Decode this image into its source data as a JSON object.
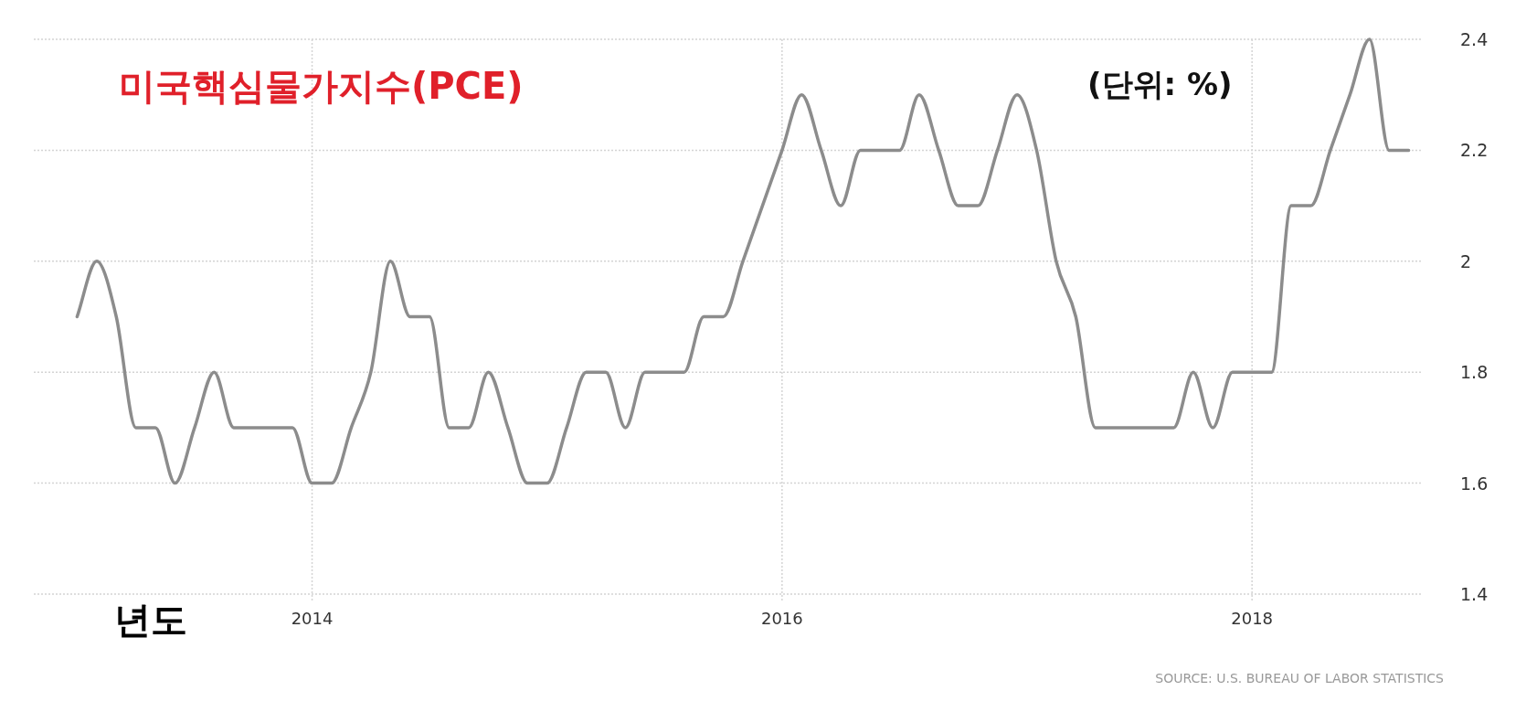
{
  "chart_data": {
    "type": "line",
    "title": "미국핵심물가지수(PCE)",
    "ylabel": "(단위: %)",
    "xlabel": "년도",
    "annotations": [
      "SOURCE: U.S. BUREAU OF LABOR STATISTICS"
    ],
    "x": [
      "2013-01",
      "2013-02",
      "2013-03",
      "2013-04",
      "2013-05",
      "2013-06",
      "2013-07",
      "2013-08",
      "2013-09",
      "2013-10",
      "2013-11",
      "2013-12",
      "2014-01",
      "2014-02",
      "2014-03",
      "2014-04",
      "2014-05",
      "2014-06",
      "2014-07",
      "2014-08",
      "2014-09",
      "2014-10",
      "2014-11",
      "2014-12",
      "2015-01",
      "2015-02",
      "2015-03",
      "2015-04",
      "2015-05",
      "2015-06",
      "2015-07",
      "2015-08",
      "2015-09",
      "2015-10",
      "2015-11",
      "2015-12",
      "2016-01",
      "2016-02",
      "2016-03",
      "2016-04",
      "2016-05",
      "2016-06",
      "2016-07",
      "2016-08",
      "2016-09",
      "2016-10",
      "2016-11",
      "2016-12",
      "2017-01",
      "2017-02",
      "2017-03",
      "2017-04",
      "2017-05",
      "2017-06",
      "2017-07",
      "2017-08",
      "2017-09",
      "2017-10",
      "2017-11",
      "2017-12",
      "2018-01",
      "2018-02",
      "2018-03",
      "2018-04",
      "2018-05",
      "2018-06",
      "2018-07",
      "2018-08",
      "2018-09"
    ],
    "series": [
      {
        "color": "#8c8c8c",
        "values": [
          1.9,
          2.0,
          1.9,
          1.7,
          1.7,
          1.6,
          1.7,
          1.8,
          1.7,
          1.7,
          1.7,
          1.7,
          1.6,
          1.6,
          1.7,
          1.8,
          2.0,
          1.9,
          1.9,
          1.7,
          1.7,
          1.8,
          1.7,
          1.6,
          1.6,
          1.7,
          1.8,
          1.8,
          1.7,
          1.8,
          1.8,
          1.8,
          1.9,
          1.9,
          2.0,
          2.1,
          2.2,
          2.3,
          2.2,
          2.1,
          2.2,
          2.2,
          2.2,
          2.3,
          2.2,
          2.1,
          2.1,
          2.2,
          2.3,
          2.2,
          2.0,
          1.9,
          1.7,
          1.7,
          1.7,
          1.7,
          1.7,
          1.8,
          1.7,
          1.8,
          1.8,
          1.8,
          2.1,
          2.1,
          2.2,
          2.3,
          2.4,
          2.2,
          2.2
        ]
      }
    ],
    "xlim": [
      "2012-10-25",
      "2018-09-20"
    ],
    "xticks": [
      "2014",
      "2016",
      "2018"
    ],
    "ylim": [
      1.4,
      2.4
    ],
    "yticks": [
      1.4,
      1.6,
      1.8,
      2,
      2.2,
      2.4
    ],
    "grid": true,
    "line_style": "solid"
  }
}
